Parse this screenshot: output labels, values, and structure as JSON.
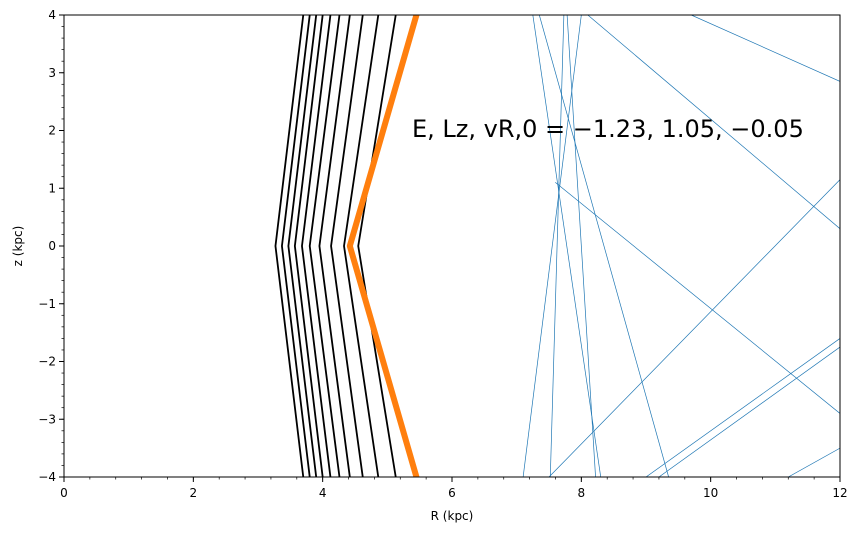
{
  "chart_data": {
    "type": "line",
    "title": "",
    "xlabel": "R (kpc)",
    "ylabel": "z (kpc)",
    "xlim": [
      0,
      12
    ],
    "ylim": [
      -4,
      4
    ],
    "xticks": [
      0,
      2,
      4,
      6,
      8,
      10,
      12
    ],
    "yticks": [
      -4,
      -3,
      -2,
      -1,
      0,
      1,
      2,
      3,
      4
    ],
    "xtick_labels": [
      "0",
      "2",
      "4",
      "6",
      "8",
      "10",
      "12"
    ],
    "ytick_labels": [
      "−4",
      "−3",
      "−2",
      "−1",
      "0",
      "1",
      "2",
      "3",
      "4"
    ],
    "grid": false,
    "annotation": "E, Lz, vR,0 = −1.23, 1.05, −0.05",
    "colors": {
      "contours": "#000000",
      "highlight": "#ff7f0e",
      "orbit": "#1f77b4"
    },
    "contour_series": [
      {
        "x": [
          3.7,
          3.27,
          3.7
        ],
        "y": [
          4,
          0,
          -4
        ]
      },
      {
        "x": [
          3.8,
          3.37,
          3.8
        ],
        "y": [
          4,
          0,
          -4
        ]
      },
      {
        "x": [
          3.9,
          3.47,
          3.9
        ],
        "y": [
          4,
          0,
          -4
        ]
      },
      {
        "x": [
          4.0,
          3.57,
          4.0
        ],
        "y": [
          4,
          0,
          -4
        ]
      },
      {
        "x": [
          4.12,
          3.68,
          4.12
        ],
        "y": [
          4,
          0,
          -4
        ]
      },
      {
        "x": [
          4.26,
          3.8,
          4.26
        ],
        "y": [
          4,
          0,
          -4
        ]
      },
      {
        "x": [
          4.42,
          3.95,
          4.42
        ],
        "y": [
          4,
          0,
          -4
        ]
      },
      {
        "x": [
          4.62,
          4.13,
          4.62
        ],
        "y": [
          4,
          0,
          -4
        ]
      },
      {
        "x": [
          4.86,
          4.33,
          4.86
        ],
        "y": [
          4,
          0,
          -4
        ]
      },
      {
        "x": [
          5.13,
          4.55,
          5.13
        ],
        "y": [
          4,
          0,
          -4
        ]
      }
    ],
    "highlight_series": {
      "x": [
        5.45,
        4.42,
        5.45
      ],
      "y": [
        4,
        0,
        -4
      ]
    },
    "orbit_segments": [
      {
        "x": [
          7.25,
          8.3
        ],
        "y": [
          4,
          -4
        ]
      },
      {
        "x": [
          7.73,
          7.52
        ],
        "y": [
          4,
          -4
        ]
      },
      {
        "x": [
          7.78,
          8.22
        ],
        "y": [
          4,
          -4
        ]
      },
      {
        "x": [
          7.1,
          8.0
        ],
        "y": [
          -4,
          4
        ]
      },
      {
        "x": [
          7.5,
          12.0
        ],
        "y": [
          -4,
          1.15
        ]
      },
      {
        "x": [
          8.1,
          12.0
        ],
        "y": [
          4,
          0.3
        ]
      },
      {
        "x": [
          9.7,
          12.0
        ],
        "y": [
          4,
          2.85
        ]
      },
      {
        "x": [
          7.6,
          12.0
        ],
        "y": [
          1.1,
          -2.9
        ]
      },
      {
        "x": [
          9.0,
          12.0
        ],
        "y": [
          -4,
          -1.6
        ]
      },
      {
        "x": [
          9.2,
          12.0
        ],
        "y": [
          -4,
          -1.75
        ]
      },
      {
        "x": [
          11.2,
          12.0
        ],
        "y": [
          -4,
          -3.5
        ]
      },
      {
        "x": [
          7.35,
          9.35
        ],
        "y": [
          4,
          -4
        ]
      }
    ]
  }
}
